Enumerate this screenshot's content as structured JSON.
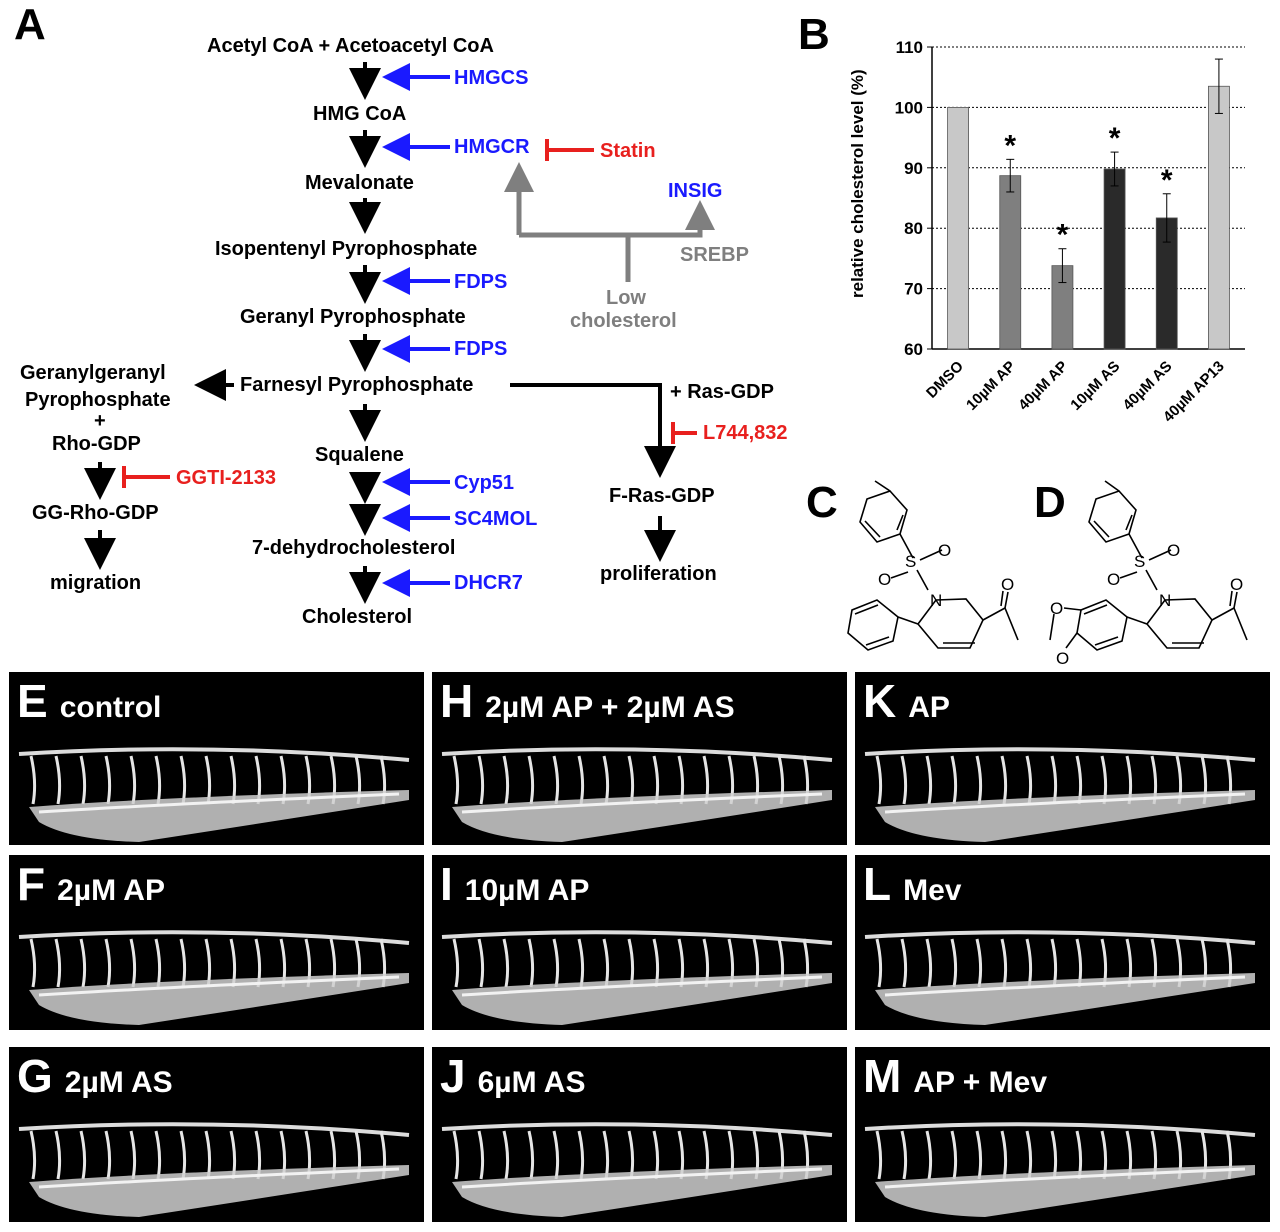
{
  "panels": {
    "A": "A",
    "B": "B",
    "C": "C",
    "D": "D",
    "E": "E",
    "F": "F",
    "G": "G",
    "H": "H",
    "I": "I",
    "J": "J",
    "K": "K",
    "L": "L",
    "M": "M"
  },
  "pathway": {
    "acetyl": "Acetyl CoA + Acetoacetyl CoA",
    "hmgcoa": "HMG CoA",
    "mevalonate": "Mevalonate",
    "ipp": "Isopentenyl Pyrophosphate",
    "gpp": "Geranyl Pyrophosphate",
    "fpp": "Farnesyl Pyrophosphate",
    "squalene": "Squalene",
    "dhc": "7-dehydrocholesterol",
    "cholesterol": "Cholesterol",
    "ggpp1": "Geranylgeranyl",
    "ggpp2": "Pyrophosphate",
    "plus": "+",
    "rhogdp": "Rho-GDP",
    "ggrho": "GG-Rho-GDP",
    "migration": "migration",
    "rasgdp": "+ Ras-GDP",
    "frasgdp": "F-Ras-GDP",
    "proliferation": "proliferation"
  },
  "enzymes": {
    "hmgcs": "HMGCS",
    "hmgcr": "HMGCR",
    "fdps1": "FDPS",
    "fdps2": "FDPS",
    "cyp51": "Cyp51",
    "sc4mol": "SC4MOL",
    "dhcr7": "DHCR7",
    "insig": "INSIG"
  },
  "inhibitors": {
    "statin": "Statin",
    "ggti": "GGTI-2133",
    "l744": "L744,832"
  },
  "regulation": {
    "srebp": "SREBP",
    "low1": "Low",
    "low2": "cholesterol"
  },
  "colors": {
    "enzyme": "#1a1aff",
    "inhibitor": "#e8201e",
    "regulation": "#7f7f7f",
    "arrow": "#000000"
  },
  "chart_data": {
    "type": "bar",
    "ylabel": "relative cholesterol level (%)",
    "ylim": [
      60,
      110
    ],
    "yticks": [
      60,
      70,
      80,
      90,
      100,
      110
    ],
    "grid": "dotted horizontal",
    "categories": [
      "DMSO",
      "10µM AP",
      "40µM AP",
      "10µM AS",
      "40µM AS",
      "40µM AP13"
    ],
    "values": [
      100,
      88.7,
      73.8,
      89.8,
      81.7,
      103.5
    ],
    "errors": [
      0,
      2.7,
      2.8,
      2.8,
      4.0,
      4.5
    ],
    "significant": [
      false,
      true,
      true,
      true,
      true,
      false
    ],
    "marker": "*",
    "bar_colors": [
      "#c8c8c8",
      "#7f7f7f",
      "#7f7f7f",
      "#2a2a2a",
      "#2a2a2a",
      "#c8c8c8"
    ]
  },
  "micrographs": [
    {
      "letter": "E",
      "label": "control"
    },
    {
      "letter": "F",
      "label": "2µM AP"
    },
    {
      "letter": "G",
      "label": "2µM AS"
    },
    {
      "letter": "H",
      "label": "2µM AP + 2µM AS"
    },
    {
      "letter": "I",
      "label": "10µM AP"
    },
    {
      "letter": "J",
      "label": "6µM AS"
    },
    {
      "letter": "K",
      "label": "AP"
    },
    {
      "letter": "L",
      "label": "Mev"
    },
    {
      "letter": "M",
      "label": "AP + Mev"
    }
  ]
}
